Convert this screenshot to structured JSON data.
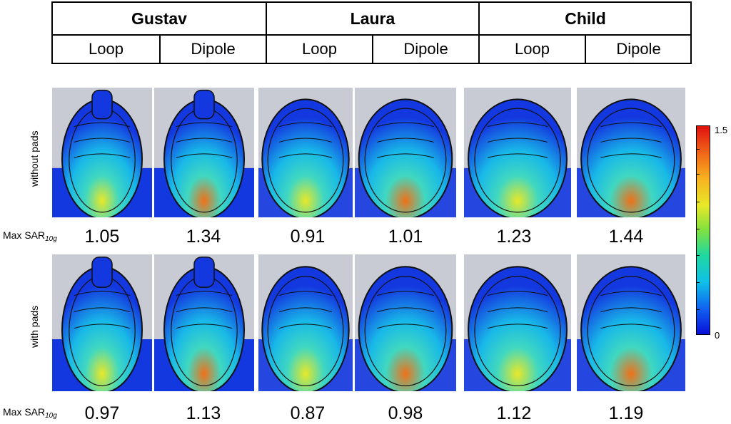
{
  "header": {
    "subjects": [
      "Gustav",
      "Laura",
      "Child"
    ],
    "coils": [
      "Loop",
      "Dipole",
      "Loop",
      "Dipole",
      "Loop",
      "Dipole"
    ]
  },
  "rows": {
    "without_pads": "without pads",
    "with_pads": "with pads"
  },
  "sar": {
    "label_main": "Max SAR",
    "label_sub": "10g",
    "without_pads": [
      "1.05",
      "1.34",
      "0.91",
      "1.01",
      "1.23",
      "1.44"
    ],
    "with_pads": [
      "0.97",
      "1.13",
      "0.87",
      "0.98",
      "1.12",
      "1.19"
    ]
  },
  "colorbar": {
    "max_label": "1.5",
    "min_label": "0",
    "colors": [
      "#0a10d8",
      "#1060f0",
      "#10c0e8",
      "#20d8a0",
      "#80e040",
      "#e8e828",
      "#f8b020",
      "#f06018",
      "#e01010"
    ]
  },
  "scan_style": {
    "background": "#c8cbd4",
    "outline": "#101010",
    "low": "#1438e0",
    "mid": "#18b8e8",
    "high": "#f07018"
  }
}
